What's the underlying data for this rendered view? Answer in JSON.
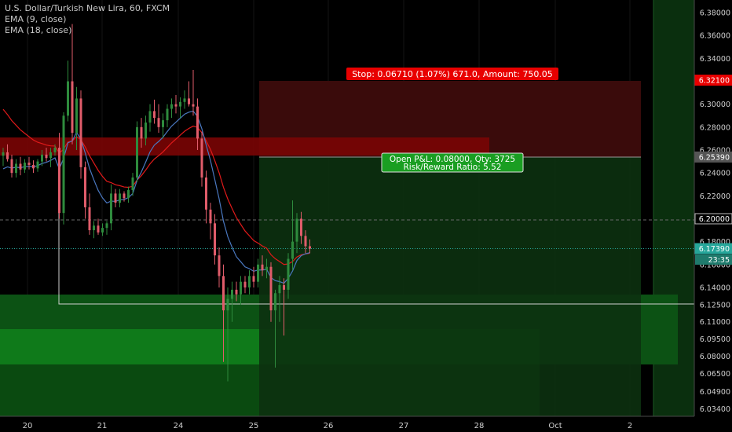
{
  "legend": {
    "title": "U.S. Dollar/Turkish New Lira, 60, FXCM",
    "ema9": "EMA (9, close)",
    "ema18": "EMA (18, close)"
  },
  "colors": {
    "up": "#2e8b3d",
    "down": "#e05c6a",
    "ema9": "#4a78c0",
    "ema18": "#e01a1a",
    "stop_label": "#e80000",
    "profit_label": "#1a9e22"
  },
  "labels": {
    "stop": "Stop: 0.06710 (1.07%) 671.0, Amount: 750.05",
    "pnl_line1": "Open P&L: 0.08000, Qty: 3725",
    "pnl_line2": "Risk/Reward Ratio: 5.52",
    "countdown": "23:35"
  },
  "chart_data": {
    "type": "candlestick",
    "title": "U.S. Dollar/Turkish New Lira, 60, FXCM",
    "ylim": [
      6.0275,
      6.391
    ],
    "y_ticks": [
      "6.38000",
      "6.36000",
      "6.34000",
      "6.32000",
      "6.30000",
      "6.28000",
      "6.26000",
      "6.24000",
      "6.22000",
      "6.20000",
      "6.18000",
      "6.16000",
      "6.14000",
      "6.12500",
      "6.11000",
      "6.09500",
      "6.08000",
      "6.06500",
      "6.04900",
      "6.03400"
    ],
    "x_ticks": [
      "20",
      "21",
      "24",
      "25",
      "26",
      "27",
      "28",
      "Oct",
      "2"
    ],
    "price_markers": [
      {
        "label": "6.32100",
        "value": 6.321,
        "color": "#e80000"
      },
      {
        "label": "6.25390",
        "value": 6.2539,
        "color": "#555555"
      },
      {
        "label": "6.20000",
        "value": 6.2,
        "color": "#000000"
      },
      {
        "label": "6.17390",
        "value": 6.1739,
        "color": "#26a69a"
      }
    ],
    "last_price": 6.1739,
    "stop_price": 6.321,
    "entry_price": 6.2539,
    "candles": [
      [
        6.255,
        6.262,
        6.246,
        6.258
      ],
      [
        6.258,
        6.265,
        6.25,
        6.252
      ],
      [
        6.252,
        6.256,
        6.236,
        6.24
      ],
      [
        6.24,
        6.252,
        6.236,
        6.248
      ],
      [
        6.248,
        6.254,
        6.238,
        6.243
      ],
      [
        6.243,
        6.252,
        6.24,
        6.249
      ],
      [
        6.249,
        6.254,
        6.243,
        6.247
      ],
      [
        6.247,
        6.251,
        6.24,
        6.244
      ],
      [
        6.244,
        6.252,
        6.241,
        6.25
      ],
      [
        6.25,
        6.26,
        6.246,
        6.256
      ],
      [
        6.256,
        6.262,
        6.25,
        6.253
      ],
      [
        6.253,
        6.262,
        6.245,
        6.258
      ],
      [
        6.258,
        6.265,
        6.255,
        6.262
      ],
      [
        6.262,
        6.275,
        6.2,
        6.205
      ],
      [
        6.205,
        6.293,
        6.195,
        6.29
      ],
      [
        6.29,
        6.338,
        6.285,
        6.32
      ],
      [
        6.32,
        6.37,
        6.265,
        6.275
      ],
      [
        6.275,
        6.315,
        6.26,
        6.305
      ],
      [
        6.305,
        6.312,
        6.235,
        6.245
      ],
      [
        6.245,
        6.25,
        6.2,
        6.21
      ],
      [
        6.21,
        6.222,
        6.186,
        6.19
      ],
      [
        6.19,
        6.198,
        6.183,
        6.194
      ],
      [
        6.194,
        6.2,
        6.186,
        6.188
      ],
      [
        6.188,
        6.196,
        6.185,
        6.192
      ],
      [
        6.192,
        6.198,
        6.186,
        6.196
      ],
      [
        6.196,
        6.23,
        6.19,
        6.222
      ],
      [
        6.222,
        6.226,
        6.21,
        6.214
      ],
      [
        6.214,
        6.226,
        6.21,
        6.222
      ],
      [
        6.222,
        6.224,
        6.215,
        6.218
      ],
      [
        6.218,
        6.228,
        6.214,
        6.225
      ],
      [
        6.225,
        6.24,
        6.22,
        6.236
      ],
      [
        6.236,
        6.285,
        6.232,
        6.28
      ],
      [
        6.28,
        6.288,
        6.262,
        6.27
      ],
      [
        6.27,
        6.29,
        6.264,
        6.284
      ],
      [
        6.284,
        6.3,
        6.276,
        6.294
      ],
      [
        6.294,
        6.304,
        6.283,
        6.288
      ],
      [
        6.288,
        6.3,
        6.275,
        6.28
      ],
      [
        6.28,
        6.292,
        6.27,
        6.286
      ],
      [
        6.286,
        6.3,
        6.28,
        6.296
      ],
      [
        6.296,
        6.305,
        6.288,
        6.3
      ],
      [
        6.3,
        6.308,
        6.292,
        6.298
      ],
      [
        6.298,
        6.306,
        6.288,
        6.302
      ],
      [
        6.302,
        6.312,
        6.296,
        6.305
      ],
      [
        6.305,
        6.32,
        6.298,
        6.3
      ],
      [
        6.3,
        6.33,
        6.29,
        6.298
      ],
      [
        6.298,
        6.305,
        6.26,
        6.27
      ],
      [
        6.27,
        6.276,
        6.228,
        6.236
      ],
      [
        6.236,
        6.242,
        6.196,
        6.208
      ],
      [
        6.208,
        6.214,
        6.182,
        6.196
      ],
      [
        6.196,
        6.204,
        6.16,
        6.168
      ],
      [
        6.168,
        6.175,
        6.14,
        6.15
      ],
      [
        6.15,
        6.16,
        6.075,
        6.12
      ],
      [
        6.12,
        6.14,
        6.058,
        6.13
      ],
      [
        6.13,
        6.145,
        6.11,
        6.138
      ],
      [
        6.138,
        6.145,
        6.128,
        6.134
      ],
      [
        6.134,
        6.15,
        6.125,
        6.145
      ],
      [
        6.145,
        6.15,
        6.135,
        6.14
      ],
      [
        6.14,
        6.155,
        6.134,
        6.15
      ],
      [
        6.15,
        6.158,
        6.14,
        6.145
      ],
      [
        6.145,
        6.165,
        6.14,
        6.16
      ],
      [
        6.16,
        6.168,
        6.15,
        6.155
      ],
      [
        6.155,
        6.165,
        6.148,
        6.158
      ],
      [
        6.158,
        6.162,
        6.11,
        6.12
      ],
      [
        6.12,
        6.138,
        6.07,
        6.135
      ],
      [
        6.135,
        6.15,
        6.11,
        6.142
      ],
      [
        6.142,
        6.148,
        6.098,
        6.138
      ],
      [
        6.138,
        6.17,
        6.13,
        6.165
      ],
      [
        6.165,
        6.216,
        6.155,
        6.18
      ],
      [
        6.18,
        6.205,
        6.17,
        6.2
      ],
      [
        6.2,
        6.206,
        6.178,
        6.185
      ],
      [
        6.185,
        6.19,
        6.17,
        6.176
      ],
      [
        6.176,
        6.182,
        6.17,
        6.1739
      ]
    ]
  }
}
